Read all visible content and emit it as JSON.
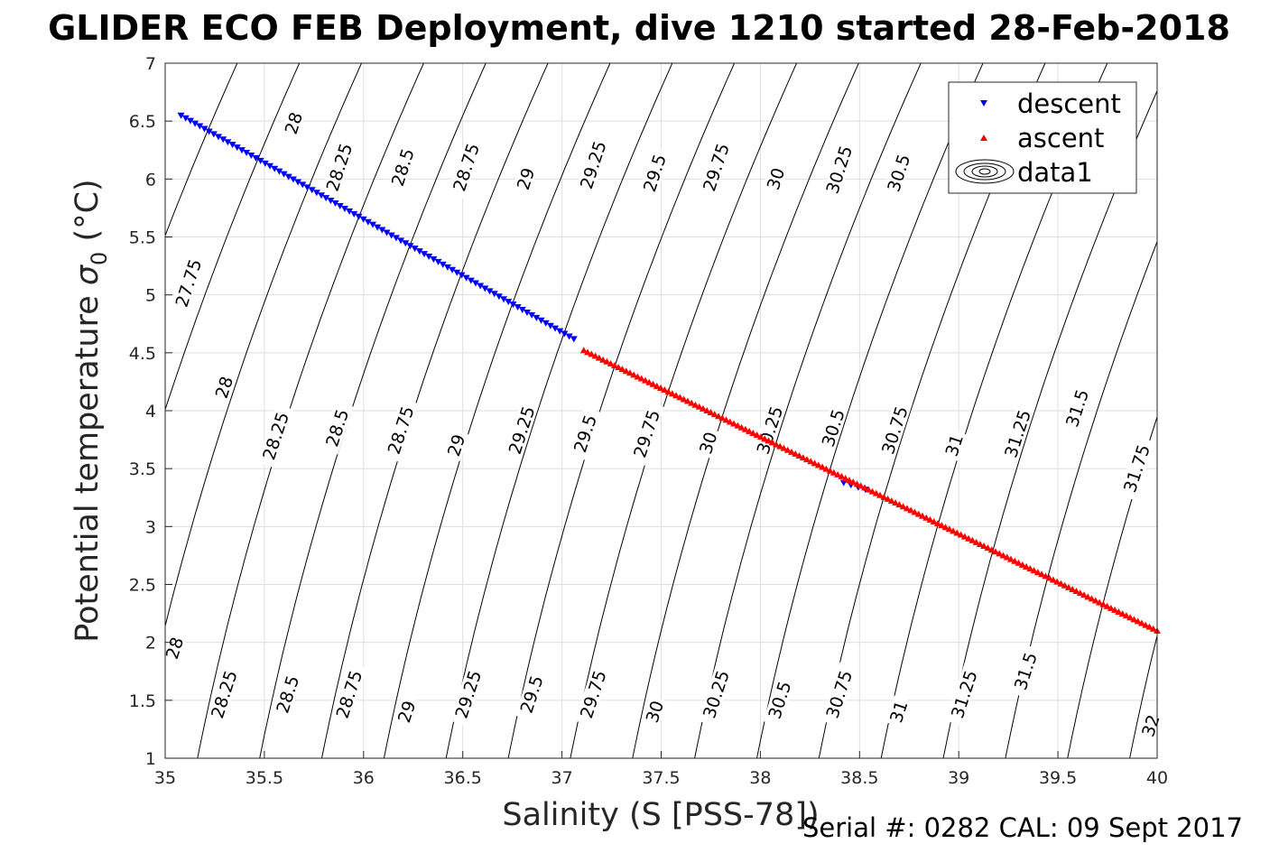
{
  "title": "GLIDER ECO FEB Deployment, dive 1210 started 28-Feb-2018",
  "footer": "Serial #: 0282  CAL: 09 Sept 2017",
  "chart_data": {
    "type": "scatter",
    "xlabel": "Salinity (S [PSS-78])",
    "ylabel_main": "Potential temperature ",
    "ylabel_sigma": "σ",
    "ylabel_sub": "0",
    "ylabel_unit": " (°C)",
    "xlim": [
      35,
      40
    ],
    "ylim": [
      1,
      7
    ],
    "xticks": [
      "35",
      "35.5",
      "36",
      "36.5",
      "37",
      "37.5",
      "38",
      "38.5",
      "39",
      "39.5",
      "40"
    ],
    "yticks": [
      "1",
      "1.5",
      "2",
      "2.5",
      "3",
      "3.5",
      "4",
      "4.5",
      "5",
      "5.5",
      "6",
      "6.5",
      "7"
    ],
    "grid": true,
    "legend_position": "top-right",
    "legend": [
      "descent",
      "ascent",
      "data1"
    ],
    "series": [
      {
        "name": "descent",
        "color": "#0000ff",
        "marker": "triangle-down",
        "segments": [
          {
            "x_start": 35.08,
            "x_end": 37.06,
            "count": 85,
            "y_start": 6.55,
            "y_end": 4.62
          },
          {
            "x_start": 38.42,
            "x_end": 38.53,
            "count": 4,
            "y_start": 3.38,
            "y_end": 3.32
          }
        ]
      },
      {
        "name": "ascent",
        "color": "#ff0000",
        "marker": "triangle-up",
        "segments": [
          {
            "x_start": 37.11,
            "x_end": 40.0,
            "count": 150,
            "y_start": 4.52,
            "y_end": 2.1
          }
        ]
      },
      {
        "name": "data1",
        "color": "#000000",
        "marker": "contour"
      }
    ],
    "contours": {
      "levels": [
        27.75,
        28,
        28.25,
        28.5,
        28.75,
        29,
        29.25,
        29.5,
        29.75,
        30,
        30.25,
        30.5,
        30.75,
        31,
        31.25,
        31.5,
        31.75,
        32
      ],
      "labels": [
        {
          "text": "28",
          "x": 35.05,
          "y": 1.95
        },
        {
          "text": "28.25",
          "x": 35.3,
          "y": 1.55
        },
        {
          "text": "28.5",
          "x": 35.62,
          "y": 1.55
        },
        {
          "text": "28.75",
          "x": 35.93,
          "y": 1.55
        },
        {
          "text": "29",
          "x": 36.22,
          "y": 1.4
        },
        {
          "text": "29.25",
          "x": 36.53,
          "y": 1.55
        },
        {
          "text": "29.5",
          "x": 36.85,
          "y": 1.55
        },
        {
          "text": "29.75",
          "x": 37.16,
          "y": 1.55
        },
        {
          "text": "30",
          "x": 37.47,
          "y": 1.4
        },
        {
          "text": "30.25",
          "x": 37.78,
          "y": 1.55
        },
        {
          "text": "30.5",
          "x": 38.1,
          "y": 1.5
        },
        {
          "text": "30.75",
          "x": 38.4,
          "y": 1.55
        },
        {
          "text": "31",
          "x": 38.7,
          "y": 1.4
        },
        {
          "text": "31.25",
          "x": 39.03,
          "y": 1.55
        },
        {
          "text": "31.5",
          "x": 39.34,
          "y": 1.75
        },
        {
          "text": "32",
          "x": 39.97,
          "y": 1.28
        },
        {
          "text": "27.75",
          "x": 35.12,
          "y": 5.1
        },
        {
          "text": "28",
          "x": 35.3,
          "y": 4.2
        },
        {
          "text": "28.25",
          "x": 35.56,
          "y": 3.78
        },
        {
          "text": "28.5",
          "x": 35.87,
          "y": 3.85
        },
        {
          "text": "28.75",
          "x": 36.19,
          "y": 3.83
        },
        {
          "text": "29",
          "x": 36.47,
          "y": 3.7
        },
        {
          "text": "29.25",
          "x": 36.8,
          "y": 3.83
        },
        {
          "text": "29.5",
          "x": 37.12,
          "y": 3.8
        },
        {
          "text": "29.75",
          "x": 37.43,
          "y": 3.8
        },
        {
          "text": "30",
          "x": 37.74,
          "y": 3.72
        },
        {
          "text": "30.25",
          "x": 38.05,
          "y": 3.83
        },
        {
          "text": "30.5",
          "x": 38.37,
          "y": 3.85
        },
        {
          "text": "30.75",
          "x": 38.68,
          "y": 3.83
        },
        {
          "text": "31",
          "x": 38.98,
          "y": 3.7
        },
        {
          "text": "31.25",
          "x": 39.3,
          "y": 3.8
        },
        {
          "text": "31.5",
          "x": 39.6,
          "y": 4.02
        },
        {
          "text": "31.75",
          "x": 39.9,
          "y": 3.5
        },
        {
          "text": "28",
          "x": 35.65,
          "y": 6.48
        },
        {
          "text": "28.25",
          "x": 35.88,
          "y": 6.1
        },
        {
          "text": "28.5",
          "x": 36.2,
          "y": 6.1
        },
        {
          "text": "28.75",
          "x": 36.52,
          "y": 6.1
        },
        {
          "text": "29",
          "x": 36.82,
          "y": 6.0
        },
        {
          "text": "29.25",
          "x": 37.16,
          "y": 6.12
        },
        {
          "text": "29.5",
          "x": 37.47,
          "y": 6.05
        },
        {
          "text": "29.75",
          "x": 37.78,
          "y": 6.1
        },
        {
          "text": "30",
          "x": 38.08,
          "y": 6.0
        },
        {
          "text": "30.25",
          "x": 38.4,
          "y": 6.08
        },
        {
          "text": "30.5",
          "x": 38.7,
          "y": 6.05
        }
      ]
    }
  }
}
